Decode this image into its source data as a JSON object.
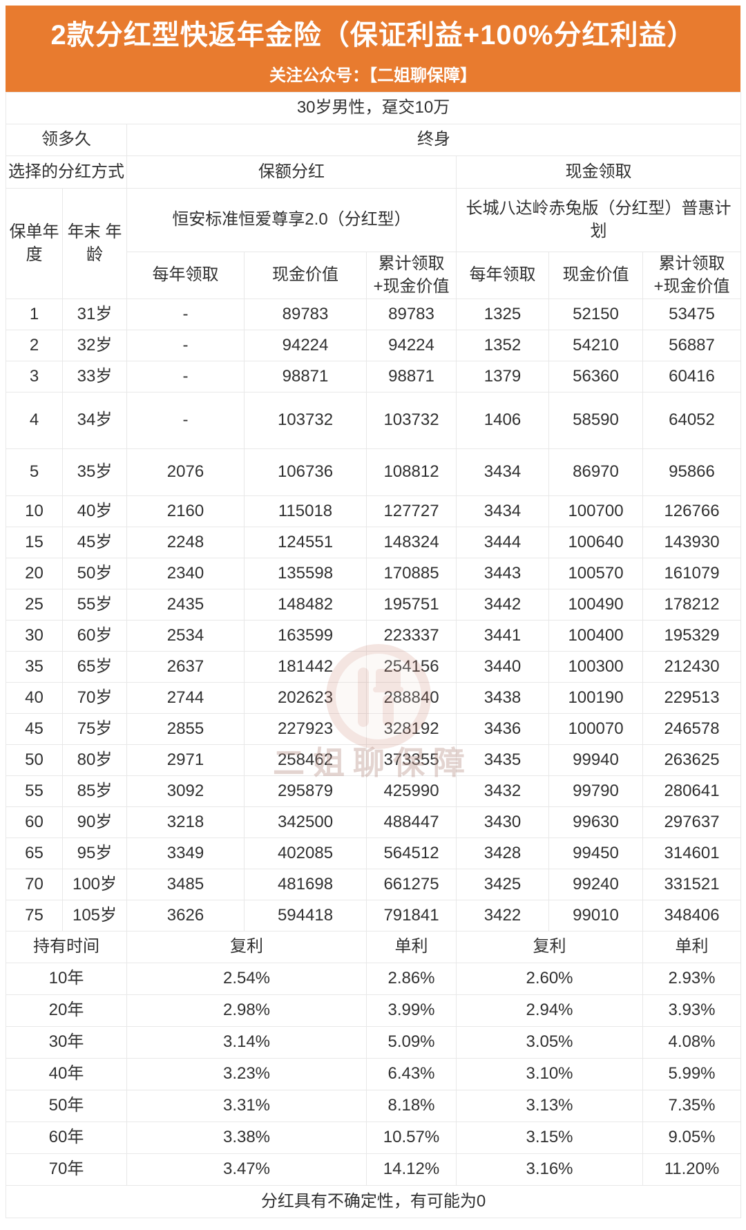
{
  "colors": {
    "banner_orange": "#E87B2F",
    "cell_cream": "#FBF3DE",
    "border_gray": "#E8E8E8",
    "text_dark": "#303030",
    "watermark_pink": "#C97F6F"
  },
  "chart_data": {
    "type": "table",
    "title": "2款分红型快返年金险（保证利益+100%分红利益）",
    "subtitle": "关注公众号：【二姐聊保障】",
    "scenario": "30岁男性，趸交10万",
    "duration_label": "领多久",
    "duration_value": "终身",
    "dividend_label": "选择的分红方式",
    "dividend_options": [
      "保额分红",
      "现金领取"
    ],
    "row_header_1": "保单年度",
    "row_header_2": "年末 年龄",
    "products": [
      "恒安标准恒爱尊享2.0（分红型）",
      "长城八达岭赤兔版（分红型）普惠计划"
    ],
    "value_headers": [
      "每年领取",
      "现金价值",
      "累计领取\n+现金价值"
    ],
    "rows": [
      {
        "policy_year": "1",
        "age": "31岁",
        "hengan": [
          "-",
          "89783",
          "89783"
        ],
        "changcheng": [
          "1325",
          "52150",
          "53475"
        ]
      },
      {
        "policy_year": "2",
        "age": "32岁",
        "hengan": [
          "-",
          "94224",
          "94224"
        ],
        "changcheng": [
          "1352",
          "54210",
          "56887"
        ]
      },
      {
        "policy_year": "3",
        "age": "33岁",
        "hengan": [
          "-",
          "98871",
          "98871"
        ],
        "changcheng": [
          "1379",
          "56360",
          "60416"
        ]
      },
      {
        "policy_year": "4",
        "age": "34岁",
        "hengan": [
          "-",
          "103732",
          "103732"
        ],
        "changcheng": [
          "1406",
          "58590",
          "64052"
        ]
      },
      {
        "policy_year": "5",
        "age": "35岁",
        "hengan": [
          "2076",
          "106736",
          "108812"
        ],
        "changcheng": [
          "3434",
          "86970",
          "95866"
        ]
      },
      {
        "policy_year": "10",
        "age": "40岁",
        "hengan": [
          "2160",
          "115018",
          "127727"
        ],
        "changcheng": [
          "3434",
          "100700",
          "126766"
        ]
      },
      {
        "policy_year": "15",
        "age": "45岁",
        "hengan": [
          "2248",
          "124551",
          "148324"
        ],
        "changcheng": [
          "3444",
          "100640",
          "143930"
        ]
      },
      {
        "policy_year": "20",
        "age": "50岁",
        "hengan": [
          "2340",
          "135598",
          "170885"
        ],
        "changcheng": [
          "3443",
          "100570",
          "161079"
        ]
      },
      {
        "policy_year": "25",
        "age": "55岁",
        "hengan": [
          "2435",
          "148482",
          "195751"
        ],
        "changcheng": [
          "3442",
          "100490",
          "178212"
        ]
      },
      {
        "policy_year": "30",
        "age": "60岁",
        "hengan": [
          "2534",
          "163599",
          "223337"
        ],
        "changcheng": [
          "3441",
          "100400",
          "195329"
        ]
      },
      {
        "policy_year": "35",
        "age": "65岁",
        "hengan": [
          "2637",
          "181442",
          "254156"
        ],
        "changcheng": [
          "3440",
          "100300",
          "212430"
        ]
      },
      {
        "policy_year": "40",
        "age": "70岁",
        "hengan": [
          "2744",
          "202623",
          "288840"
        ],
        "changcheng": [
          "3438",
          "100190",
          "229513"
        ]
      },
      {
        "policy_year": "45",
        "age": "75岁",
        "hengan": [
          "2855",
          "227923",
          "328192"
        ],
        "changcheng": [
          "3436",
          "100070",
          "246578"
        ]
      },
      {
        "policy_year": "50",
        "age": "80岁",
        "hengan": [
          "2971",
          "258462",
          "373355"
        ],
        "changcheng": [
          "3435",
          "99940",
          "263625"
        ]
      },
      {
        "policy_year": "55",
        "age": "85岁",
        "hengan": [
          "3092",
          "295879",
          "425990"
        ],
        "changcheng": [
          "3432",
          "99790",
          "280641"
        ]
      },
      {
        "policy_year": "60",
        "age": "90岁",
        "hengan": [
          "3218",
          "342500",
          "488447"
        ],
        "changcheng": [
          "3430",
          "99630",
          "297637"
        ]
      },
      {
        "policy_year": "65",
        "age": "95岁",
        "hengan": [
          "3349",
          "402085",
          "564512"
        ],
        "changcheng": [
          "3428",
          "99450",
          "314601"
        ]
      },
      {
        "policy_year": "70",
        "age": "100岁",
        "hengan": [
          "3485",
          "481698",
          "661275"
        ],
        "changcheng": [
          "3425",
          "99240",
          "331521"
        ]
      },
      {
        "policy_year": "75",
        "age": "105岁",
        "hengan": [
          "3626",
          "594418",
          "791841"
        ],
        "changcheng": [
          "3422",
          "99010",
          "348406"
        ]
      }
    ],
    "holding_label": "持有时间",
    "rate_headers": [
      "复利",
      "单利",
      "复利",
      "单利"
    ],
    "rate_rows": [
      {
        "label": "10年",
        "values": [
          "2.54%",
          "2.86%",
          "2.60%",
          "2.93%"
        ]
      },
      {
        "label": "20年",
        "values": [
          "2.98%",
          "3.99%",
          "2.94%",
          "3.93%"
        ]
      },
      {
        "label": "30年",
        "values": [
          "3.14%",
          "5.09%",
          "3.05%",
          "4.08%"
        ]
      },
      {
        "label": "40年",
        "values": [
          "3.23%",
          "6.43%",
          "3.10%",
          "5.99%"
        ]
      },
      {
        "label": "50年",
        "values": [
          "3.31%",
          "8.18%",
          "3.13%",
          "7.35%"
        ]
      },
      {
        "label": "60年",
        "values": [
          "3.38%",
          "10.57%",
          "3.15%",
          "9.05%"
        ]
      },
      {
        "label": "70年",
        "values": [
          "3.47%",
          "14.12%",
          "3.16%",
          "11.20%"
        ]
      }
    ],
    "footnote": "分红具有不确定性，有可能为0",
    "watermark": "二姐聊保障"
  }
}
